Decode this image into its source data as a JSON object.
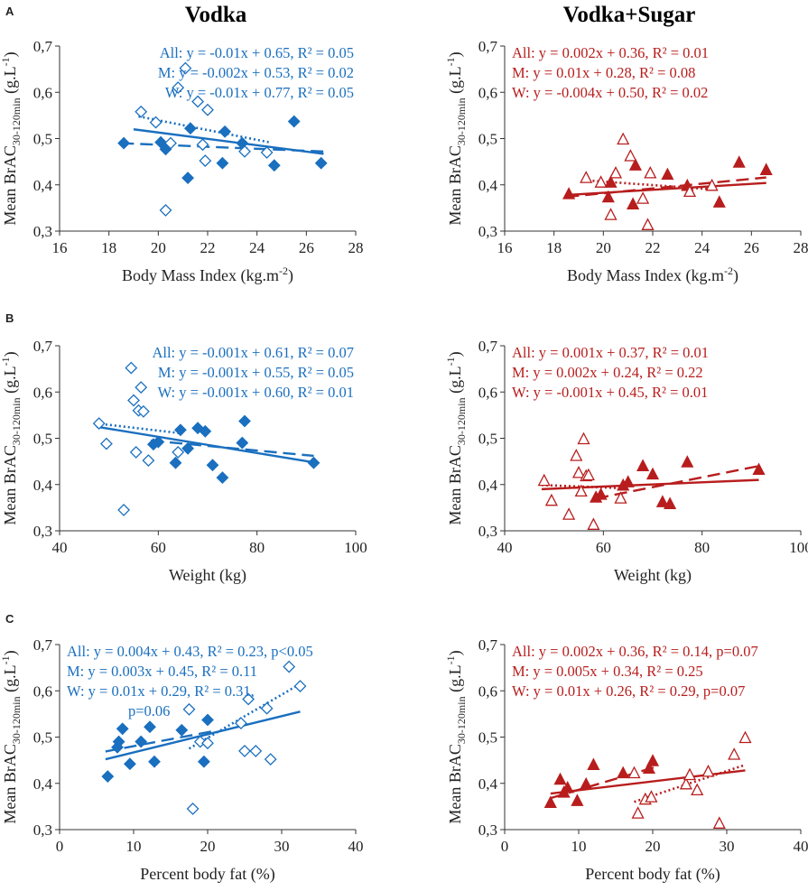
{
  "column_titles": [
    "Vodka",
    "Vodka+Sugar"
  ],
  "row_letters": [
    "A",
    "B",
    "C"
  ],
  "y_label": {
    "prefix": "Mean BrAC",
    "subscript": "30-120min",
    "unit": " (g.L",
    "unit_exp": "-1",
    "unit_close": ")"
  },
  "colors": {
    "vodka": "#1a6fbf",
    "sugar": "#b81d1d"
  },
  "chart_data": [
    {
      "id": "A-vodka",
      "type": "scatter",
      "row": "A",
      "column": "Vodka",
      "color": "vodka",
      "xlim": [
        16,
        28
      ],
      "xticks": [
        "16",
        "18",
        "20",
        "22",
        "24",
        "26",
        "28"
      ],
      "ylim": [
        0.3,
        0.7
      ],
      "yticks": [
        "0,3",
        "0,4",
        "0,5",
        "0,6",
        "0,7"
      ],
      "xlabel": "Body Mass Index (kg.m",
      "xlabel_sup": "-2",
      "xlabel_close": ")",
      "equations": [
        "All: y = -0.01x + 0.65, R² = 0.05",
        "M: y = -0.002x + 0.53, R² = 0.02",
        "W: y = -0.01x + 0.77, R² = 0.05"
      ],
      "eq_anchor": "end",
      "series": [
        {
          "name": "M",
          "marker": "diamond-filled",
          "x": [
            18.6,
            20.1,
            20.3,
            21.2,
            21.3,
            22.6,
            22.7,
            23.4,
            24.7,
            25.5,
            26.6
          ],
          "y": [
            0.49,
            0.492,
            0.477,
            0.415,
            0.522,
            0.447,
            0.515,
            0.49,
            0.442,
            0.537,
            0.447
          ]
        },
        {
          "name": "W",
          "marker": "diamond-open",
          "x": [
            19.3,
            19.9,
            20.3,
            20.5,
            20.8,
            21.1,
            21.6,
            21.8,
            21.9,
            22.0,
            23.5,
            24.4
          ],
          "y": [
            0.558,
            0.535,
            0.345,
            0.49,
            0.61,
            0.652,
            0.58,
            0.487,
            0.452,
            0.562,
            0.472,
            0.47
          ]
        }
      ],
      "fits": [
        {
          "name": "All",
          "style": "solid",
          "x": [
            19.0,
            26.7
          ],
          "y": [
            0.52,
            0.467
          ]
        },
        {
          "name": "M",
          "style": "dash",
          "x": [
            18.5,
            26.7
          ],
          "y": [
            0.49,
            0.472
          ]
        },
        {
          "name": "W",
          "style": "dot",
          "x": [
            19.2,
            24.5
          ],
          "y": [
            0.548,
            0.492
          ]
        }
      ]
    },
    {
      "id": "A-sugar",
      "type": "scatter",
      "row": "A",
      "column": "Vodka+Sugar",
      "color": "sugar",
      "xlim": [
        16,
        28
      ],
      "xticks": [
        "16",
        "18",
        "20",
        "22",
        "24",
        "26",
        "28"
      ],
      "ylim": [
        0.3,
        0.7
      ],
      "yticks": [
        "0,3",
        "0,4",
        "0,5",
        "0,6",
        "0,7"
      ],
      "xlabel": "Body Mass Index (kg.m",
      "xlabel_sup": "-2",
      "xlabel_close": ")",
      "equations": [
        "All: y = 0.002x + 0.36, R² = 0.01",
        "M: y = 0.01x + 0.28, R² = 0.08",
        "W: y = -0.004x + 0.50, R² = 0.02"
      ],
      "eq_anchor": "start",
      "series": [
        {
          "name": "M",
          "marker": "triangle-filled",
          "x": [
            18.6,
            20.2,
            20.3,
            21.2,
            21.3,
            22.6,
            23.4,
            24.7,
            25.5,
            26.6
          ],
          "y": [
            0.38,
            0.373,
            0.405,
            0.358,
            0.442,
            0.422,
            0.398,
            0.362,
            0.448,
            0.432
          ]
        },
        {
          "name": "W",
          "marker": "triangle-open",
          "x": [
            19.3,
            19.9,
            20.3,
            20.5,
            20.8,
            21.1,
            21.6,
            21.8,
            21.9,
            23.5,
            24.4
          ],
          "y": [
            0.415,
            0.405,
            0.335,
            0.425,
            0.498,
            0.462,
            0.37,
            0.313,
            0.425,
            0.385,
            0.398
          ]
        }
      ],
      "fits": [
        {
          "name": "All",
          "style": "solid",
          "x": [
            18.5,
            26.6
          ],
          "y": [
            0.378,
            0.404
          ]
        },
        {
          "name": "M",
          "style": "dash",
          "x": [
            18.5,
            26.6
          ],
          "y": [
            0.374,
            0.416
          ]
        },
        {
          "name": "W",
          "style": "dot",
          "x": [
            19.2,
            24.5
          ],
          "y": [
            0.41,
            0.39
          ]
        }
      ]
    },
    {
      "id": "B-vodka",
      "type": "scatter",
      "row": "B",
      "column": "Vodka",
      "color": "vodka",
      "xlim": [
        40,
        100
      ],
      "xticks": [
        "40",
        "60",
        "80",
        "100"
      ],
      "ylim": [
        0.3,
        0.7
      ],
      "yticks": [
        "0,3",
        "0,4",
        "0,5",
        "0,6",
        "0,7"
      ],
      "xlabel": "Weight (kg)",
      "equations": [
        "All: y = -0.001x + 0.61, R² = 0.07",
        "M: y = -0.001x + 0.55, R² = 0.05",
        "W: y = -0.001x + 0.60, R² = 0.01"
      ],
      "eq_anchor": "end",
      "series": [
        {
          "name": "M",
          "marker": "diamond-filled",
          "x": [
            59.0,
            60.0,
            63.5,
            64.5,
            66.0,
            68.0,
            69.5,
            71.0,
            73.0,
            77.0,
            77.5,
            91.5
          ],
          "y": [
            0.487,
            0.492,
            0.447,
            0.518,
            0.478,
            0.522,
            0.515,
            0.442,
            0.415,
            0.49,
            0.537,
            0.447
          ]
        },
        {
          "name": "W",
          "marker": "diamond-open",
          "x": [
            48.0,
            49.5,
            53.0,
            54.5,
            55.0,
            55.5,
            56.0,
            56.5,
            57.0,
            58.0,
            64.0
          ],
          "y": [
            0.532,
            0.488,
            0.345,
            0.652,
            0.582,
            0.47,
            0.56,
            0.61,
            0.558,
            0.452,
            0.47
          ]
        }
      ],
      "fits": [
        {
          "name": "All",
          "style": "solid",
          "x": [
            47.5,
            91.5
          ],
          "y": [
            0.525,
            0.448
          ]
        },
        {
          "name": "M",
          "style": "dash",
          "x": [
            58.5,
            91.5
          ],
          "y": [
            0.495,
            0.462
          ]
        },
        {
          "name": "W",
          "style": "dot",
          "x": [
            47.5,
            64.5
          ],
          "y": [
            0.532,
            0.511
          ]
        }
      ]
    },
    {
      "id": "B-sugar",
      "type": "scatter",
      "row": "B",
      "column": "Vodka+Sugar",
      "color": "sugar",
      "xlim": [
        40,
        100
      ],
      "xticks": [
        "40",
        "60",
        "80",
        "100"
      ],
      "ylim": [
        0.3,
        0.7
      ],
      "yticks": [
        "0,3",
        "0,4",
        "0,5",
        "0,6",
        "0,7"
      ],
      "xlabel": "Weight (kg)",
      "equations": [
        "All: y = 0.001x + 0.37, R² = 0.01",
        "M: y = 0.002x + 0.24, R² = 0.22",
        "W: y = -0.001x + 0.45, R² = 0.01"
      ],
      "eq_anchor": "start",
      "series": [
        {
          "name": "M",
          "marker": "triangle-filled",
          "x": [
            58.5,
            59.5,
            64.0,
            65.0,
            68.0,
            70.0,
            72.0,
            73.5,
            77.0,
            91.5
          ],
          "y": [
            0.372,
            0.378,
            0.398,
            0.405,
            0.44,
            0.422,
            0.362,
            0.358,
            0.448,
            0.432
          ]
        },
        {
          "name": "W",
          "marker": "triangle-open",
          "x": [
            48.0,
            49.5,
            53.0,
            54.5,
            55.0,
            55.5,
            56.0,
            56.5,
            57.0,
            58.0,
            63.5
          ],
          "y": [
            0.408,
            0.365,
            0.335,
            0.462,
            0.425,
            0.385,
            0.498,
            0.418,
            0.42,
            0.313,
            0.37
          ]
        }
      ],
      "fits": [
        {
          "name": "All",
          "style": "solid",
          "x": [
            47.5,
            91.5
          ],
          "y": [
            0.39,
            0.41
          ]
        },
        {
          "name": "M",
          "style": "dash",
          "x": [
            58.5,
            91.5
          ],
          "y": [
            0.37,
            0.44
          ]
        },
        {
          "name": "W",
          "style": "dot",
          "x": [
            47.5,
            64.0
          ],
          "y": [
            0.399,
            0.392
          ]
        }
      ]
    },
    {
      "id": "C-vodka",
      "type": "scatter",
      "row": "C",
      "column": "Vodka",
      "color": "vodka",
      "xlim": [
        0,
        40
      ],
      "xticks": [
        "0",
        "10",
        "20",
        "30",
        "40"
      ],
      "ylim": [
        0.3,
        0.7
      ],
      "yticks": [
        "0,3",
        "0,4",
        "0,5",
        "0,6",
        "0,7"
      ],
      "xlabel": "Percent body fat (%)",
      "equations": [
        "All: y = 0.004x + 0.43, R² = 0.23, p<0.05",
        "M: y = 0.003x + 0.45, R² = 0.11",
        "W: y = 0.01x + 0.29, R² = 0.31,",
        "p=0.06"
      ],
      "eq_anchor": "start",
      "series": [
        {
          "name": "M",
          "marker": "diamond-filled",
          "x": [
            6.5,
            7.8,
            8.0,
            8.5,
            9.5,
            11.0,
            12.2,
            12.8,
            16.5,
            19.5,
            20.0
          ],
          "y": [
            0.415,
            0.478,
            0.49,
            0.518,
            0.442,
            0.49,
            0.522,
            0.447,
            0.515,
            0.447,
            0.537
          ]
        },
        {
          "name": "W",
          "marker": "diamond-open",
          "x": [
            17.5,
            18.0,
            19.0,
            20.0,
            24.5,
            25.0,
            25.5,
            26.5,
            28.0,
            28.5,
            31.0,
            32.5
          ],
          "y": [
            0.56,
            0.345,
            0.49,
            0.487,
            0.53,
            0.47,
            0.582,
            0.47,
            0.562,
            0.452,
            0.652,
            0.61
          ]
        }
      ],
      "fits": [
        {
          "name": "All",
          "style": "solid",
          "x": [
            6.2,
            32.5
          ],
          "y": [
            0.452,
            0.555
          ]
        },
        {
          "name": "M",
          "style": "dash",
          "x": [
            6.2,
            20.5
          ],
          "y": [
            0.469,
            0.512
          ]
        },
        {
          "name": "W",
          "style": "dot",
          "x": [
            17.5,
            32.5
          ],
          "y": [
            0.475,
            0.615
          ]
        }
      ]
    },
    {
      "id": "C-sugar",
      "type": "scatter",
      "row": "C",
      "column": "Vodka+Sugar",
      "color": "sugar",
      "xlim": [
        0,
        40
      ],
      "xticks": [
        "0",
        "10",
        "20",
        "30",
        "40"
      ],
      "ylim": [
        0.3,
        0.7
      ],
      "yticks": [
        "0,3",
        "0,4",
        "0,5",
        "0,6",
        "0,7"
      ],
      "xlabel": "Percent body fat (%)",
      "equations": [
        "All: y = 0.002x + 0.36, R² = 0.14, p=0.07",
        "M: y = 0.005x + 0.34, R² = 0.25",
        "W: y = 0.01x + 0.26, R² = 0.29, p=0.07"
      ],
      "eq_anchor": "start",
      "series": [
        {
          "name": "M",
          "marker": "triangle-filled",
          "x": [
            6.2,
            7.5,
            8.0,
            8.5,
            9.8,
            11.0,
            12.0,
            16.0,
            19.5,
            20.0
          ],
          "y": [
            0.358,
            0.408,
            0.38,
            0.39,
            0.362,
            0.398,
            0.44,
            0.422,
            0.432,
            0.448
          ]
        },
        {
          "name": "W",
          "marker": "triangle-open",
          "x": [
            17.5,
            18.0,
            19.0,
            19.8,
            24.5,
            25.0,
            26.0,
            27.5,
            29.0,
            31.0,
            32.5
          ],
          "y": [
            0.422,
            0.335,
            0.365,
            0.37,
            0.398,
            0.418,
            0.385,
            0.425,
            0.313,
            0.462,
            0.498
          ]
        }
      ],
      "fits": [
        {
          "name": "All",
          "style": "solid",
          "x": [
            6.2,
            32.5
          ],
          "y": [
            0.378,
            0.428
          ]
        },
        {
          "name": "M",
          "style": "dash",
          "x": [
            6.2,
            20.5
          ],
          "y": [
            0.368,
            0.436
          ]
        },
        {
          "name": "W",
          "style": "dot",
          "x": [
            17.5,
            32.5
          ],
          "y": [
            0.36,
            0.44
          ]
        }
      ]
    }
  ]
}
